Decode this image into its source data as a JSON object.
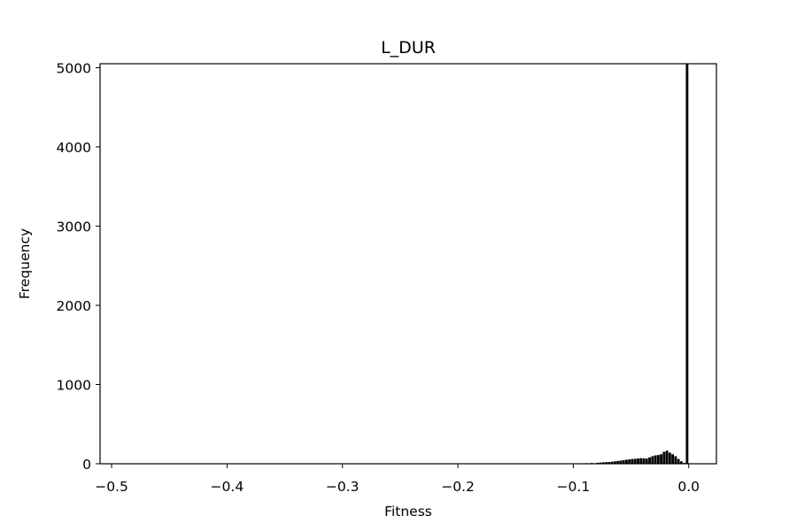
{
  "chart_data": {
    "type": "bar",
    "title": "L_DUR",
    "xlabel": "Fitness",
    "ylabel": "Frequency",
    "xlim": [
      -0.51,
      0.024
    ],
    "ylim": [
      0,
      5050
    ],
    "xticks": [
      -0.5,
      -0.4,
      -0.3,
      -0.2,
      -0.1,
      0.0
    ],
    "xtick_labels": [
      "−0.5",
      "−0.4",
      "−0.3",
      "−0.2",
      "−0.1",
      "0.0"
    ],
    "yticks": [
      0,
      1000,
      2000,
      3000,
      4000,
      5000
    ],
    "ytick_labels": [
      "0",
      "1000",
      "2000",
      "3000",
      "4000",
      "5000"
    ],
    "bin_width": 0.0025,
    "bin_starts": [
      -0.105,
      -0.1,
      -0.095,
      -0.09,
      -0.085,
      -0.08,
      -0.0775,
      -0.075,
      -0.0725,
      -0.07,
      -0.0675,
      -0.065,
      -0.0625,
      -0.06,
      -0.0575,
      -0.055,
      -0.0525,
      -0.05,
      -0.0475,
      -0.045,
      -0.0425,
      -0.04,
      -0.0375,
      -0.035,
      -0.0325,
      -0.03,
      -0.0275,
      -0.025,
      -0.0225,
      -0.02,
      -0.0175,
      -0.015,
      -0.0125,
      -0.01,
      -0.0075,
      -0.005,
      -0.0025
    ],
    "values": [
      3,
      4,
      5,
      7,
      9,
      12,
      15,
      18,
      20,
      22,
      26,
      30,
      35,
      40,
      45,
      50,
      55,
      60,
      62,
      66,
      70,
      68,
      65,
      80,
      95,
      105,
      110,
      120,
      150,
      165,
      140,
      120,
      95,
      60,
      30,
      10,
      5050
    ],
    "grid": false,
    "color": "#000000"
  }
}
